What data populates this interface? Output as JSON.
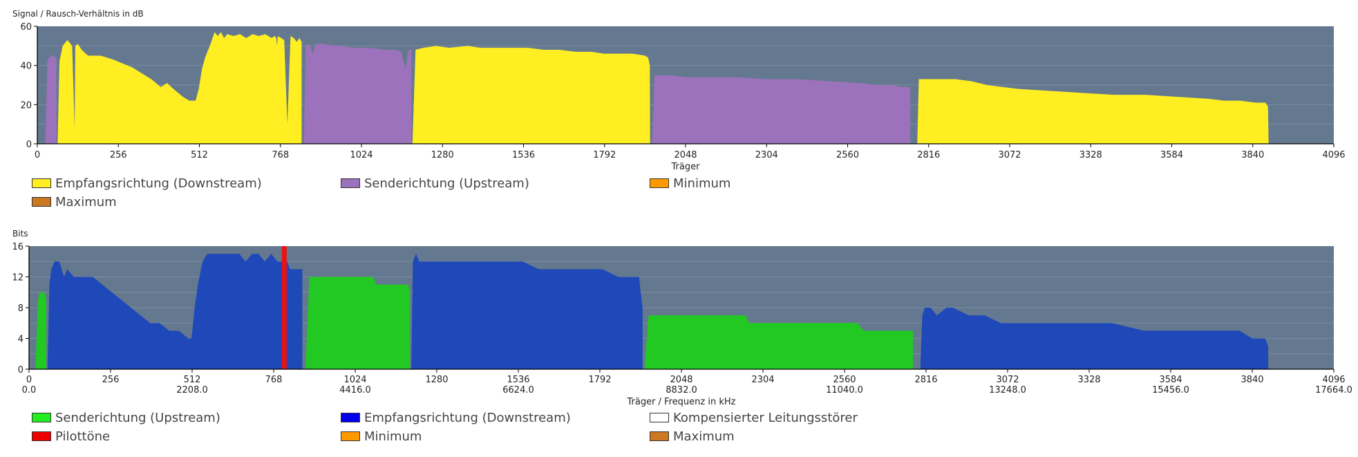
{
  "chart_data": [
    {
      "type": "area",
      "ylabel": "Signal / Rausch-Verhältnis in dB",
      "xlabel": "Träger",
      "xlim": [
        0,
        4096
      ],
      "ylim": [
        0,
        60
      ],
      "yticks": [
        0,
        20,
        40,
        60
      ],
      "xticks": [
        0,
        256,
        512,
        768,
        1024,
        1280,
        1536,
        1792,
        2048,
        2304,
        2560,
        2816,
        3072,
        3328,
        3584,
        3840,
        4096
      ],
      "legend": [
        {
          "label": "Empfangsrichtung (Downstream)",
          "color": "#ffee22"
        },
        {
          "label": "Senderichtung (Upstream)",
          "color": "#9b72bb"
        },
        {
          "label": "Minimum",
          "color": "#ff9900"
        },
        {
          "label": "Maximum",
          "color": "#cc7722"
        }
      ],
      "series": [
        {
          "name": "Senderichtung (Upstream)",
          "color": "#9b72bb",
          "x": [
            25,
            32,
            40,
            48,
            60,
            60
          ],
          "y": [
            0,
            42,
            45,
            45,
            44,
            0
          ]
        },
        {
          "name": "Empfangsrichtung (Downstream)",
          "color": "#ffee22",
          "x": [
            64,
            70,
            80,
            95,
            110,
            118,
            120,
            128,
            140,
            160,
            200,
            240,
            270,
            300,
            330,
            360,
            390,
            410,
            430,
            460,
            480,
            500,
            510,
            520,
            530,
            545,
            560,
            570,
            580,
            590,
            600,
            620,
            640,
            660,
            680,
            700,
            720,
            740,
            750,
            755,
            757,
            760,
            770,
            780,
            790,
            800,
            810,
            820,
            828,
            835,
            835
          ],
          "y": [
            0,
            42,
            50,
            53,
            50,
            8,
            50,
            51,
            48,
            45,
            45,
            43,
            41,
            39,
            36,
            33,
            29,
            31,
            28,
            24,
            22,
            22,
            28,
            38,
            44,
            50,
            57,
            55,
            57,
            54,
            56,
            55,
            56,
            54,
            56,
            55,
            56,
            54,
            55,
            54,
            50,
            55,
            54,
            53,
            10,
            55,
            54,
            52,
            54,
            52,
            0
          ]
        },
        {
          "name": "Senderichtung (Upstream)",
          "color": "#9b72bb",
          "x": [
            842,
            848,
            860,
            870,
            880,
            900,
            950,
            1000,
            1050,
            1100,
            1130,
            1150,
            1160,
            1165,
            1170,
            1175,
            1180,
            1182,
            1182
          ],
          "y": [
            0,
            50,
            51,
            46,
            51,
            51,
            50,
            49,
            49,
            48,
            48,
            47,
            40,
            38,
            46,
            48,
            48,
            48,
            0
          ]
        },
        {
          "name": "Empfangsrichtung (Downstream)",
          "color": "#ffee22",
          "x": [
            1185,
            1195,
            1220,
            1260,
            1300,
            1360,
            1400,
            1450,
            1500,
            1550,
            1600,
            1650,
            1700,
            1750,
            1790,
            1840,
            1880,
            1920,
            1930,
            1935,
            1936
          ],
          "y": [
            0,
            48,
            49,
            50,
            49,
            50,
            49,
            49,
            49,
            49,
            48,
            48,
            47,
            47,
            46,
            46,
            46,
            45,
            44,
            40,
            0
          ]
        },
        {
          "name": "Senderichtung (Upstream)",
          "color": "#9b72bb",
          "x": [
            1942,
            1950,
            2000,
            2050,
            2100,
            2200,
            2300,
            2400,
            2500,
            2600,
            2650,
            2700,
            2730,
            2755,
            2758,
            2758
          ],
          "y": [
            0,
            35,
            35,
            34,
            34,
            34,
            33,
            33,
            32,
            31,
            30,
            30,
            29,
            29,
            28,
            0
          ]
        },
        {
          "name": "Empfangsrichtung (Downstream)",
          "color": "#ffee22",
          "x": [
            2780,
            2785,
            2800,
            2900,
            2950,
            3000,
            3050,
            3100,
            3200,
            3300,
            3400,
            3500,
            3600,
            3700,
            3750,
            3800,
            3850,
            3880,
            3888,
            3890
          ],
          "y": [
            0,
            33,
            33,
            33,
            32,
            30,
            29,
            28,
            27,
            26,
            25,
            25,
            24,
            23,
            22,
            22,
            21,
            21,
            19,
            0
          ]
        }
      ]
    },
    {
      "type": "area",
      "ylabel": "Bits",
      "xlabel": "Träger / Frequenz in kHz",
      "xlim": [
        0,
        4096
      ],
      "ylim": [
        0,
        16
      ],
      "yticks": [
        0,
        4,
        8,
        12,
        16
      ],
      "xticks": [
        0,
        256,
        512,
        768,
        1024,
        1280,
        1536,
        1792,
        2048,
        2304,
        2560,
        2816,
        3072,
        3328,
        3584,
        3840,
        4096
      ],
      "xticks2": [
        "0.0",
        "",
        "2208.0",
        "",
        "4416.0",
        "",
        "6624.0",
        "",
        "8832.0",
        "",
        "11040.0",
        "",
        "13248.0",
        "",
        "15456.0",
        "",
        "17664.0"
      ],
      "legend": [
        {
          "label": "Senderichtung (Upstream)",
          "color": "#22ee22"
        },
        {
          "label": "Empfangsrichtung (Downstream)",
          "color": "#0000ee"
        },
        {
          "label": "Kompensierter Leitungsstörer",
          "color": "#ffffff"
        },
        {
          "label": "Pilottöne",
          "color": "#ee0000"
        },
        {
          "label": "Minimum",
          "color": "#ff9900"
        },
        {
          "label": "Maximum",
          "color": "#cc7722"
        }
      ],
      "pilot": {
        "x": 800,
        "color": "#ee1111"
      },
      "series": [
        {
          "name": "Senderichtung (Upstream)",
          "color": "#22c922",
          "x": [
            20,
            28,
            34,
            48,
            54,
            54
          ],
          "y": [
            0,
            9,
            10,
            10,
            9,
            0
          ]
        },
        {
          "name": "Empfangsrichtung (Downstream)",
          "color": "#1f48b8",
          "x": [
            58,
            64,
            70,
            80,
            95,
            110,
            120,
            140,
            160,
            200,
            230,
            260,
            290,
            320,
            350,
            380,
            410,
            440,
            470,
            500,
            510,
            520,
            530,
            545,
            560,
            580,
            600,
            620,
            640,
            660,
            680,
            700,
            720,
            740,
            760,
            780,
            800,
            810,
            820,
            830,
            840,
            850,
            858,
            858
          ],
          "y": [
            0,
            11,
            13,
            14,
            14,
            12,
            13,
            12,
            12,
            12,
            11,
            10,
            9,
            8,
            7,
            6,
            6,
            5,
            5,
            4,
            4,
            8,
            11,
            14,
            15,
            15,
            15,
            15,
            15,
            15,
            14,
            15,
            15,
            14,
            15,
            14,
            14,
            14,
            13,
            13,
            13,
            13,
            13,
            0
          ]
        },
        {
          "name": "Senderichtung (Upstream)",
          "color": "#22c922",
          "x": [
            868,
            880,
            920,
            1000,
            1080,
            1090,
            1100,
            1150,
            1180,
            1190,
            1196,
            1196
          ],
          "y": [
            0,
            12,
            12,
            12,
            12,
            11,
            11,
            11,
            11,
            11,
            10,
            0
          ]
        },
        {
          "name": "Empfangsrichtung (Downstream)",
          "color": "#1f48b8",
          "x": [
            1200,
            1205,
            1215,
            1225,
            1240,
            1260,
            1300,
            1360,
            1400,
            1450,
            1500,
            1550,
            1600,
            1650,
            1700,
            1750,
            1800,
            1850,
            1880,
            1900,
            1915,
            1920,
            1926,
            1926
          ],
          "y": [
            0,
            14,
            15,
            14,
            14,
            14,
            14,
            14,
            14,
            14,
            14,
            14,
            13,
            13,
            13,
            13,
            13,
            12,
            12,
            12,
            12,
            10,
            8,
            0
          ]
        },
        {
          "name": "Senderichtung (Upstream)",
          "color": "#22c922",
          "x": [
            1932,
            1945,
            2000,
            2100,
            2200,
            2250,
            2260,
            2300,
            2400,
            2500,
            2600,
            2620,
            2700,
            2770,
            2775,
            2775
          ],
          "y": [
            0,
            7,
            7,
            7,
            7,
            7,
            6,
            6,
            6,
            6,
            6,
            5,
            5,
            5,
            5,
            0
          ]
        },
        {
          "name": "Empfangsrichtung (Downstream)",
          "color": "#1f48b8",
          "x": [
            2798,
            2804,
            2812,
            2830,
            2850,
            2880,
            2900,
            2950,
            3000,
            3050,
            3100,
            3150,
            3200,
            3250,
            3300,
            3400,
            3500,
            3550,
            3600,
            3700,
            3800,
            3840,
            3870,
            3880,
            3890,
            3890
          ],
          "y": [
            0,
            7,
            8,
            8,
            7,
            8,
            8,
            7,
            7,
            6,
            6,
            6,
            6,
            6,
            6,
            6,
            5,
            5,
            5,
            5,
            5,
            4,
            4,
            4,
            3,
            0
          ]
        }
      ]
    }
  ]
}
